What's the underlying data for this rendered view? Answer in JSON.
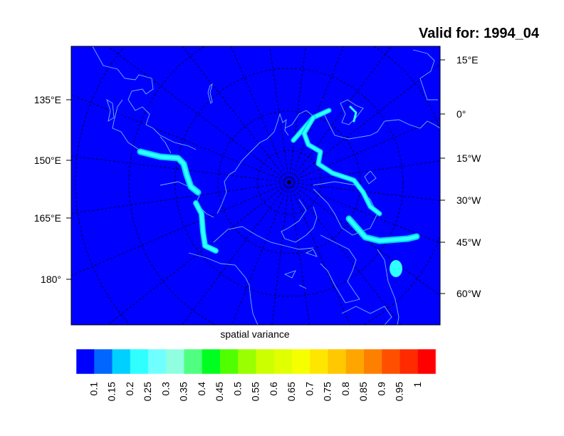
{
  "title": "Valid for: 1994_04",
  "xlabel": "spatial variance",
  "map": {
    "projection": "polar stereographic (north)",
    "background_color": "#0000ff",
    "coastline_color": "#6fb8ff",
    "left_labels": [
      "135°E",
      "150°E",
      "165°E",
      "180°"
    ],
    "right_labels": [
      "15°E",
      "0°",
      "15°W",
      "30°W",
      "45°W",
      "60°W"
    ],
    "highlight_color": "#30ffff",
    "highlight_edge_color": "#00d0ff"
  },
  "colorbar": {
    "colors": [
      "#0000ff",
      "#0066ff",
      "#00d0ff",
      "#30ffff",
      "#70ffff",
      "#90ffe0",
      "#50ff80",
      "#00ff20",
      "#50ff00",
      "#9aff00",
      "#ccff00",
      "#e0ff00",
      "#f5ff00",
      "#ffe600",
      "#ffc800",
      "#ffa500",
      "#ff8000",
      "#ff5000",
      "#ff2a00",
      "#ff0000"
    ],
    "labels": [
      "0.1",
      "0.15",
      "0.2",
      "0.25",
      "0.3",
      "0.35",
      "0.4",
      "0.45",
      "0.5",
      "0.55",
      "0.6",
      "0.65",
      "0.7",
      "0.75",
      "0.8",
      "0.85",
      "0.9",
      "0.95",
      "1"
    ]
  }
}
